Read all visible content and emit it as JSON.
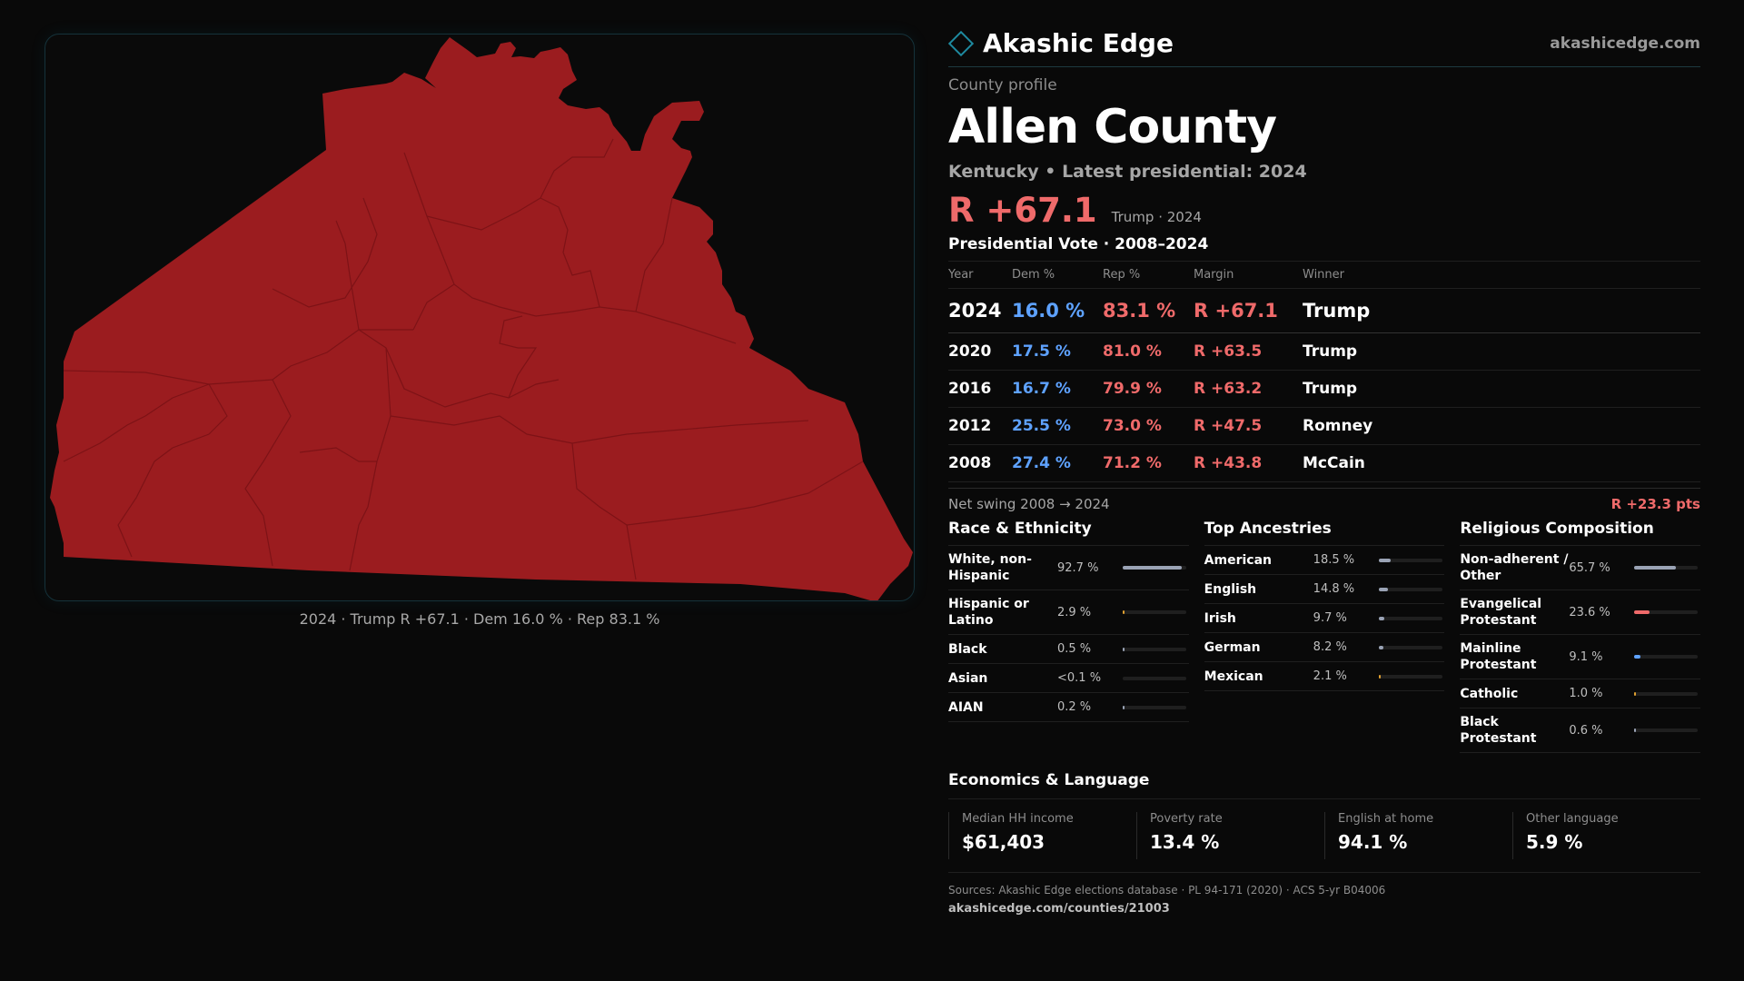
{
  "brand": {
    "name": "Akashic Edge",
    "url": "akashicedge.com"
  },
  "map": {
    "caption": "2024 · Trump R +67.1 · Dem 16.0 % · Rep 83.1 %",
    "fill_color": "#9b1c1f"
  },
  "profile": {
    "kicker": "County profile",
    "title": "Allen County",
    "subline": "Kentucky • Latest presidential: 2024",
    "headline_margin": "R +67.1",
    "headline_sub": "Trump · 2024"
  },
  "presidential": {
    "title": "Presidential Vote · 2008–2024",
    "headers": {
      "year": "Year",
      "dem": "Dem %",
      "rep": "Rep %",
      "margin": "Margin",
      "winner": "Winner"
    },
    "rows": [
      {
        "year": "2024",
        "dem": "16.0 %",
        "rep": "83.1 %",
        "margin": "R +67.1",
        "winner": "Trump"
      },
      {
        "year": "2020",
        "dem": "17.5 %",
        "rep": "81.0 %",
        "margin": "R +63.5",
        "winner": "Trump"
      },
      {
        "year": "2016",
        "dem": "16.7 %",
        "rep": "79.9 %",
        "margin": "R +63.2",
        "winner": "Trump"
      },
      {
        "year": "2012",
        "dem": "25.5 %",
        "rep": "73.0 %",
        "margin": "R +47.5",
        "winner": "Romney"
      },
      {
        "year": "2008",
        "dem": "27.4 %",
        "rep": "71.2 %",
        "margin": "R +43.8",
        "winner": "McCain"
      }
    ],
    "swing_label": "Net swing 2008 → 2024",
    "swing_value": "R +23.3 pts"
  },
  "race": {
    "title": "Race & Ethnicity",
    "items": [
      {
        "label": "White, non-Hispanic",
        "value": "92.7 %",
        "fraction": 0.927,
        "color": "#9aa3b5"
      },
      {
        "label": "Hispanic or Latino",
        "value": "2.9 %",
        "fraction": 0.029,
        "color": "#e0a030"
      },
      {
        "label": "Black",
        "value": "0.5 %",
        "fraction": 0.005,
        "color": "#9aa3b5"
      },
      {
        "label": "Asian",
        "value": "<0.1 %",
        "fraction": 0.0,
        "color": "#9aa3b5"
      },
      {
        "label": "AIAN",
        "value": "0.2 %",
        "fraction": 0.002,
        "color": "#9aa3b5"
      }
    ]
  },
  "ancestry": {
    "title": "Top Ancestries",
    "items": [
      {
        "label": "American",
        "value": "18.5 %",
        "fraction": 0.185,
        "color": "#9aa3b5"
      },
      {
        "label": "English",
        "value": "14.8 %",
        "fraction": 0.148,
        "color": "#9aa3b5"
      },
      {
        "label": "Irish",
        "value": "9.7 %",
        "fraction": 0.097,
        "color": "#9aa3b5"
      },
      {
        "label": "German",
        "value": "8.2 %",
        "fraction": 0.082,
        "color": "#9aa3b5"
      },
      {
        "label": "Mexican",
        "value": "2.1 %",
        "fraction": 0.021,
        "color": "#e0a030"
      }
    ]
  },
  "religion": {
    "title": "Religious Composition",
    "items": [
      {
        "label": "Non-adherent / Other",
        "value": "65.7 %",
        "fraction": 0.657,
        "color": "#9aa3b5"
      },
      {
        "label": "Evangelical Protestant",
        "value": "23.6 %",
        "fraction": 0.236,
        "color": "#ef6a6a"
      },
      {
        "label": "Mainline Protestant",
        "value": "9.1 %",
        "fraction": 0.091,
        "color": "#5ea2ff"
      },
      {
        "label": "Catholic",
        "value": "1.0 %",
        "fraction": 0.01,
        "color": "#e0a030"
      },
      {
        "label": "Black Protestant",
        "value": "0.6 %",
        "fraction": 0.006,
        "color": "#9aa3b5"
      }
    ]
  },
  "economics": {
    "title": "Economics & Language",
    "cells": [
      {
        "label": "Median HH income",
        "value": "$61,403"
      },
      {
        "label": "Poverty rate",
        "value": "13.4 %"
      },
      {
        "label": "English at home",
        "value": "94.1 %"
      },
      {
        "label": "Other language",
        "value": "5.9 %"
      }
    ]
  },
  "sources": {
    "text": "Sources: Akashic Edge elections database · PL 94-171 (2020) · ACS 5-yr B04006",
    "url": "akashicedge.com/counties/21003"
  }
}
